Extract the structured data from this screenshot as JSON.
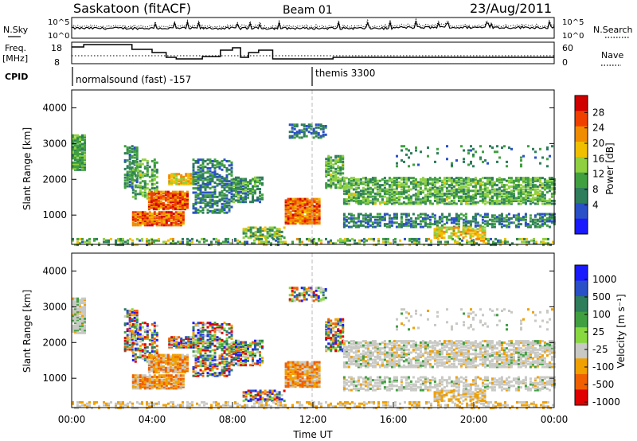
{
  "header": {
    "station": "Saskatoon (fitACF)",
    "beam": "Beam 01",
    "date": "23/Aug/2011"
  },
  "panels": {
    "noise": {
      "left_label": "N.Sky",
      "right_label": "N.Search",
      "ticks_left": [
        "10^5",
        "10^0"
      ],
      "ticks_right": [
        "10^5",
        "10^0"
      ]
    },
    "freq": {
      "left_label_1": "Freq.",
      "left_label_2": "[MHz]",
      "right_label": "Nave",
      "ticks_left": [
        "18",
        "8"
      ],
      "ticks_right": [
        "60",
        "0"
      ]
    },
    "cpid": {
      "label": "CPID",
      "modes": [
        "normalsound (fast) -157",
        "themis 3300"
      ]
    }
  },
  "colors": {
    "power": [
      "#1a1aff",
      "#2a50c8",
      "#2e7d5b",
      "#40a040",
      "#8ed040",
      "#f0c000",
      "#f08c00",
      "#f04000",
      "#d00000"
    ],
    "velocity": [
      "#e00000",
      "#f06000",
      "#f0a000",
      "#c8c8c4",
      "#88d840",
      "#40a040",
      "#2e7d5b",
      "#2a50c8",
      "#1a1aff"
    ]
  },
  "chart_data": [
    {
      "type": "heatmap",
      "name": "power",
      "xlabel": "",
      "ylabel": "Slant Range [km]",
      "xlim": [
        0,
        24
      ],
      "ylim": [
        180,
        4500
      ],
      "yticks": [
        "1000",
        "2000",
        "3000",
        "4000"
      ],
      "colorbar_label": "Power [dB]",
      "colorbar_ticks": [
        "4",
        "8",
        "12",
        "16",
        "20",
        "24",
        "28"
      ],
      "colorbar_range": [
        0,
        32
      ]
    },
    {
      "type": "heatmap",
      "name": "velocity",
      "xlabel": "Time UT",
      "ylabel": "Slant Range [km]",
      "xlim": [
        0,
        24
      ],
      "ylim": [
        180,
        4500
      ],
      "xticks": [
        "00:00",
        "04:00",
        "08:00",
        "12:00",
        "16:00",
        "20:00",
        "00:00"
      ],
      "yticks": [
        "1000",
        "2000",
        "3000",
        "4000"
      ],
      "colorbar_label": "Velocity [m s⁻¹]",
      "colorbar_ticks": [
        "1000",
        "500",
        "100",
        "25",
        "-25",
        "-100",
        "-500",
        "-1000"
      ]
    }
  ]
}
